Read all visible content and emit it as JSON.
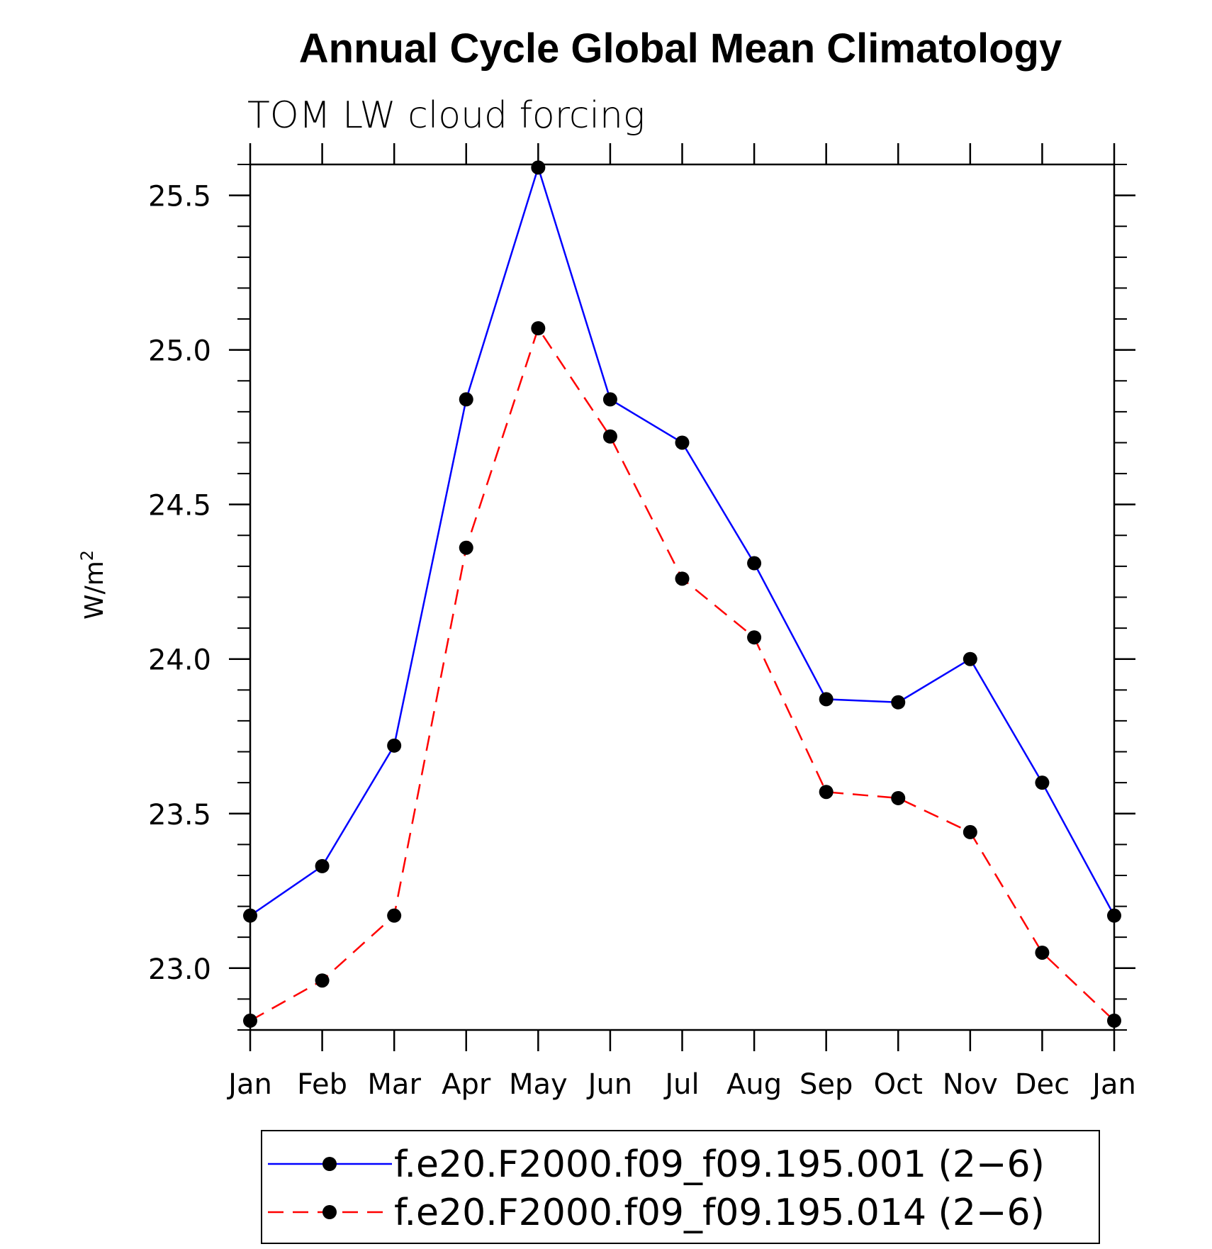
{
  "chart_data": {
    "type": "line",
    "title": "Annual Cycle Global Mean Climatology",
    "subtitle": "TOM LW cloud forcing",
    "ylabel": "W/m",
    "ylabel_superscript": "2",
    "categories": [
      "Jan",
      "Feb",
      "Mar",
      "Apr",
      "May",
      "Jun",
      "Jul",
      "Aug",
      "Sep",
      "Oct",
      "Nov",
      "Dec",
      "Jan"
    ],
    "ylim": [
      22.8,
      25.6
    ],
    "yticks": [
      23.0,
      23.5,
      24.0,
      24.5,
      25.0,
      25.5
    ],
    "ytick_labels": [
      "23.0",
      "23.5",
      "24.0",
      "24.5",
      "25.0",
      "25.5"
    ],
    "y_minor_step": 0.1,
    "legend_position": "bottom",
    "series": [
      {
        "name": "f.e20.F2000.f09_f09.195.001 (2−6)",
        "color": "#0000ff",
        "line_style": "solid",
        "marker": "filled-circle",
        "values": [
          23.17,
          23.33,
          23.72,
          24.84,
          25.59,
          24.84,
          24.7,
          24.31,
          23.87,
          23.86,
          24.0,
          23.6,
          23.17
        ]
      },
      {
        "name": "f.e20.F2000.f09_f09.195.014 (2−6)",
        "color": "#ff0000",
        "line_style": "dashed",
        "marker": "filled-circle",
        "values": [
          22.83,
          22.96,
          23.17,
          24.36,
          25.07,
          24.72,
          24.26,
          24.07,
          23.57,
          23.55,
          23.44,
          23.05,
          22.83
        ]
      }
    ]
  }
}
